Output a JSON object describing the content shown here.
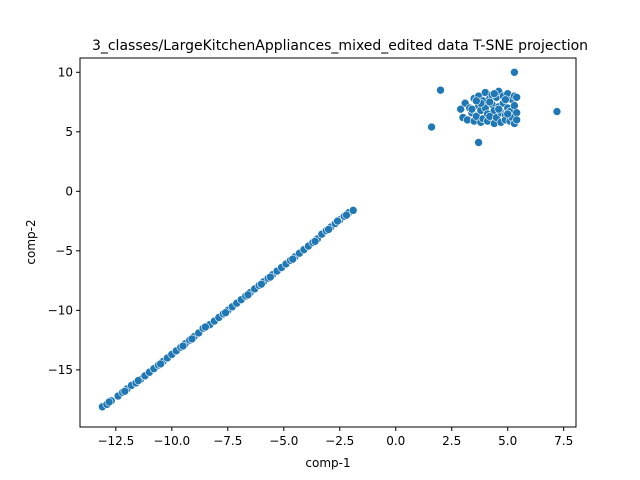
{
  "chart_data": {
    "type": "scatter",
    "title": "3_classes/LargeKitchenAppliances_mixed_edited data T-SNE projection",
    "xlabel": "comp-1",
    "ylabel": "comp-2",
    "xlim": [
      -14.1,
      8.05
    ],
    "ylim": [
      -19.8,
      11.2
    ],
    "xticks": [
      -12.5,
      -10.0,
      -7.5,
      -5.0,
      -2.5,
      0.0,
      2.5,
      5.0,
      7.5
    ],
    "xtick_labels": [
      "−12.5",
      "−10.0",
      "−7.5",
      "−5.0",
      "−2.5",
      "0.0",
      "2.5",
      "5.0",
      "7.5"
    ],
    "yticks": [
      -15,
      -10,
      -5,
      0,
      5,
      10
    ],
    "ytick_labels": [
      "−15",
      "−10",
      "−5",
      "0",
      "5",
      "10"
    ],
    "grid": false,
    "marker_color": "#1f77b4",
    "series": [
      {
        "values": [],
        "points": [
          [
            -13.1,
            -18.1
          ],
          [
            -12.9,
            -17.9
          ],
          [
            -12.7,
            -17.6
          ],
          [
            -12.4,
            -17.2
          ],
          [
            -12.2,
            -16.9
          ],
          [
            -12.0,
            -16.6
          ],
          [
            -11.8,
            -16.3
          ],
          [
            -11.6,
            -16.1
          ],
          [
            -11.4,
            -15.8
          ],
          [
            -11.2,
            -15.5
          ],
          [
            -11.0,
            -15.2
          ],
          [
            -10.8,
            -14.9
          ],
          [
            -10.6,
            -14.6
          ],
          [
            -10.4,
            -14.3
          ],
          [
            -10.2,
            -14.0
          ],
          [
            -10.0,
            -13.7
          ],
          [
            -9.8,
            -13.4
          ],
          [
            -9.6,
            -13.1
          ],
          [
            -9.4,
            -12.8
          ],
          [
            -9.2,
            -12.5
          ],
          [
            -9.0,
            -12.2
          ],
          [
            -8.8,
            -11.9
          ],
          [
            -8.6,
            -11.5
          ],
          [
            -8.3,
            -11.2
          ],
          [
            -8.1,
            -10.9
          ],
          [
            -7.9,
            -10.6
          ],
          [
            -7.7,
            -10.3
          ],
          [
            -7.5,
            -10.0
          ],
          [
            -7.3,
            -9.7
          ],
          [
            -7.1,
            -9.4
          ],
          [
            -6.9,
            -9.1
          ],
          [
            -6.7,
            -8.8
          ],
          [
            -6.5,
            -8.5
          ],
          [
            -6.3,
            -8.2
          ],
          [
            -6.1,
            -7.9
          ],
          [
            -5.9,
            -7.6
          ],
          [
            -5.7,
            -7.3
          ],
          [
            -5.5,
            -7.0
          ],
          [
            -5.3,
            -6.7
          ],
          [
            -5.1,
            -6.4
          ],
          [
            -4.9,
            -6.1
          ],
          [
            -4.7,
            -5.8
          ],
          [
            -4.5,
            -5.5
          ],
          [
            -4.3,
            -5.2
          ],
          [
            -4.1,
            -4.9
          ],
          [
            -3.9,
            -4.6
          ],
          [
            -3.7,
            -4.3
          ],
          [
            -3.5,
            -4.0
          ],
          [
            -3.3,
            -3.6
          ],
          [
            -3.1,
            -3.3
          ],
          [
            -2.9,
            -3.0
          ],
          [
            -2.7,
            -2.7
          ],
          [
            -2.5,
            -2.4
          ],
          [
            -2.3,
            -2.1
          ],
          [
            -2.1,
            -1.8
          ],
          [
            -1.9,
            -1.6
          ],
          [
            -12.8,
            -17.7
          ],
          [
            -11.5,
            -15.9
          ],
          [
            -10.5,
            -14.5
          ],
          [
            -9.5,
            -13.0
          ],
          [
            -8.5,
            -11.4
          ],
          [
            -7.6,
            -10.2
          ],
          [
            -6.6,
            -8.7
          ],
          [
            -5.6,
            -7.2
          ],
          [
            -4.6,
            -5.7
          ],
          [
            -3.6,
            -4.2
          ],
          [
            -2.6,
            -2.5
          ],
          [
            -12.1,
            -16.8
          ],
          [
            -9.1,
            -12.4
          ],
          [
            -6.0,
            -7.8
          ],
          [
            -3.0,
            -3.2
          ],
          [
            -2.2,
            -2.0
          ],
          [
            3.0,
            6.2
          ],
          [
            3.1,
            7.4
          ],
          [
            3.2,
            6.0
          ],
          [
            3.3,
            7.0
          ],
          [
            3.4,
            6.6
          ],
          [
            3.5,
            7.8
          ],
          [
            3.5,
            5.9
          ],
          [
            3.6,
            6.3
          ],
          [
            3.7,
            8.0
          ],
          [
            3.7,
            7.2
          ],
          [
            3.8,
            6.8
          ],
          [
            3.8,
            5.8
          ],
          [
            3.9,
            7.6
          ],
          [
            3.9,
            6.1
          ],
          [
            4.0,
            8.3
          ],
          [
            4.0,
            7.0
          ],
          [
            4.1,
            6.5
          ],
          [
            4.1,
            5.9
          ],
          [
            4.2,
            7.8
          ],
          [
            4.2,
            6.3
          ],
          [
            4.3,
            8.1
          ],
          [
            4.3,
            7.3
          ],
          [
            4.4,
            6.8
          ],
          [
            4.4,
            5.7
          ],
          [
            4.5,
            7.9
          ],
          [
            4.5,
            6.2
          ],
          [
            4.6,
            8.4
          ],
          [
            4.6,
            7.1
          ],
          [
            4.7,
            6.6
          ],
          [
            4.7,
            5.8
          ],
          [
            4.8,
            8.0
          ],
          [
            4.8,
            7.4
          ],
          [
            4.9,
            6.4
          ],
          [
            4.9,
            6.0
          ],
          [
            5.0,
            8.2
          ],
          [
            5.0,
            7.0
          ],
          [
            5.1,
            6.7
          ],
          [
            5.1,
            5.9
          ],
          [
            5.2,
            7.7
          ],
          [
            5.2,
            6.2
          ],
          [
            5.3,
            8.0
          ],
          [
            5.3,
            7.2
          ],
          [
            5.3,
            5.7
          ],
          [
            5.4,
            6.6
          ],
          [
            5.4,
            7.9
          ],
          [
            5.4,
            6.0
          ],
          [
            3.4,
            6.9
          ],
          [
            4.2,
            7.5
          ],
          [
            4.6,
            6.9
          ],
          [
            5.0,
            6.5
          ],
          [
            3.8,
            7.4
          ],
          [
            4.4,
            8.2
          ],
          [
            3.6,
            7.6
          ],
          [
            4.9,
            7.7
          ],
          [
            2.9,
            6.9
          ],
          [
            5.3,
            10.0
          ],
          [
            7.2,
            6.7
          ],
          [
            2.0,
            8.5
          ],
          [
            1.6,
            5.4
          ],
          [
            3.7,
            4.1
          ]
        ]
      }
    ]
  }
}
